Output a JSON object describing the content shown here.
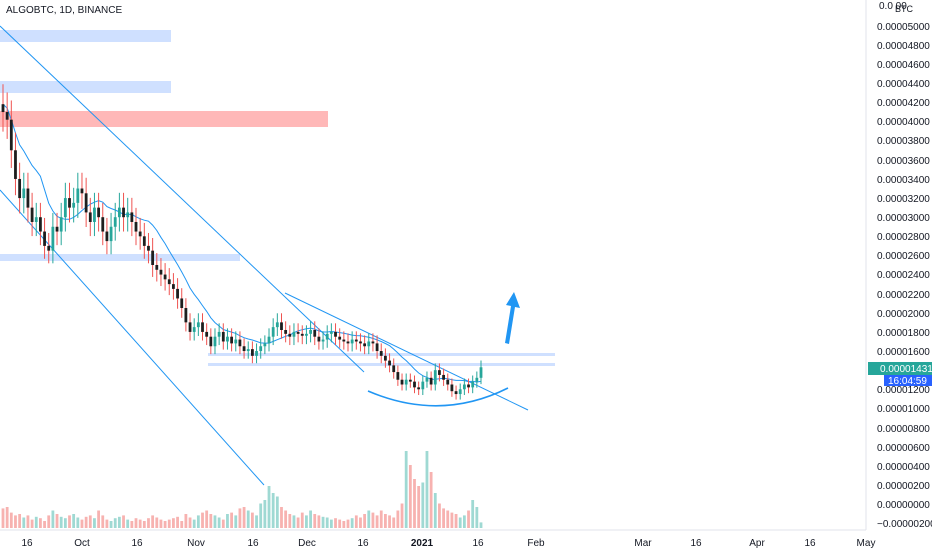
{
  "header": {
    "title": "ALGOBTC, 1D, BINANCE"
  },
  "price_axis": {
    "unit": "BTC",
    "top_label": "0.0  00",
    "ticks": [
      "0.00005000",
      "0.00004800",
      "0.00004600",
      "0.00004400",
      "0.00004200",
      "0.00004000",
      "0.00003800",
      "0.00003600",
      "0.00003400",
      "0.00003200",
      "0.00003000",
      "0.00002800",
      "0.00002600",
      "0.00002400",
      "0.00002200",
      "0.00002000",
      "0.00001800",
      "0.00001600",
      "0.00001200",
      "0.00001000",
      "0.00000800",
      "0.00000600",
      "0.00000400",
      "0.00000200",
      "0.00000000",
      "−0.00000200"
    ],
    "current_price": "0.00001431",
    "countdown": "16:04:59",
    "price_color": "#26a69a",
    "countdown_color": "#2962ff"
  },
  "time_axis": {
    "ticks": [
      {
        "label": "16",
        "bold": false
      },
      {
        "label": "Oct",
        "bold": false
      },
      {
        "label": "16",
        "bold": false
      },
      {
        "label": "Nov",
        "bold": false
      },
      {
        "label": "16",
        "bold": false
      },
      {
        "label": "Dec",
        "bold": false
      },
      {
        "label": "16",
        "bold": false
      },
      {
        "label": "2021",
        "bold": true
      },
      {
        "label": "16",
        "bold": false
      },
      {
        "label": "Feb",
        "bold": false
      },
      {
        "label": "Mar",
        "bold": false
      },
      {
        "label": "16",
        "bold": false
      },
      {
        "label": "Apr",
        "bold": false
      },
      {
        "label": "16",
        "bold": false
      },
      {
        "label": "May",
        "bold": false
      }
    ]
  },
  "chart_data": {
    "type": "candlestick",
    "title": "ALGOBTC, 1D, BINANCE",
    "x_range": [
      "2020-09-09",
      "2021-05-01"
    ],
    "y_range": [
      -2.5e-06,
      5.2e-05
    ],
    "up_color": "#26a69a",
    "down_color": "#ef5350",
    "candle_up_color": "#26a69a",
    "candle_down_color": "#1e1e1e",
    "wick_color": "#ef5350",
    "ma_color": "#2196f3",
    "closes": [
      4.1e-05,
      4.02e-05,
      3.7e-05,
      3.4e-05,
      3.2e-05,
      3.3e-05,
      3.1e-05,
      2.95e-05,
      3e-05,
      2.85e-05,
      2.7e-05,
      2.65e-05,
      2.9e-05,
      2.85e-05,
      3e-05,
      3.2e-05,
      3.1e-05,
      3.15e-05,
      3.3e-05,
      3.25e-05,
      3.05e-05,
      2.95e-05,
      3.1e-05,
      3e-05,
      2.85e-05,
      2.75e-05,
      2.9e-05,
      3e-05,
      3.1e-05,
      3e-05,
      3.05e-05,
      2.95e-05,
      2.85e-05,
      2.8e-05,
      2.7e-05,
      2.65e-05,
      2.5e-05,
      2.45e-05,
      2.4e-05,
      2.35e-05,
      2.3e-05,
      2.25e-05,
      2.15e-05,
      2.05e-05,
      1.9e-05,
      1.8e-05,
      1.85e-05,
      1.9e-05,
      1.8e-05,
      1.75e-05,
      1.65e-05,
      1.75e-05,
      1.8e-05,
      1.7e-05,
      1.75e-05,
      1.68e-05,
      1.72e-05,
      1.65e-05,
      1.6e-05,
      1.62e-05,
      1.55e-05,
      1.6e-05,
      1.65e-05,
      1.68e-05,
      1.75e-05,
      1.85e-05,
      1.9e-05,
      1.82e-05,
      1.78e-05,
      1.75e-05,
      1.8e-05,
      1.78e-05,
      1.76e-05,
      1.78e-05,
      1.82e-05,
      1.75e-05,
      1.7e-05,
      1.72e-05,
      1.78e-05,
      1.8e-05,
      1.75e-05,
      1.72e-05,
      1.7e-05,
      1.68e-05,
      1.72e-05,
      1.7e-05,
      1.68e-05,
      1.65e-05,
      1.7e-05,
      1.68e-05,
      1.6e-05,
      1.55e-05,
      1.5e-05,
      1.45e-05,
      1.38e-05,
      1.3e-05,
      1.25e-05,
      1.3e-05,
      1.28e-05,
      1.22e-05,
      1.2e-05,
      1.28e-05,
      1.32e-05,
      1.25e-05,
      1.4e-05,
      1.35e-05,
      1.3e-05,
      1.25e-05,
      1.18e-05,
      1.15e-05,
      1.2e-05,
      1.25e-05,
      1.22e-05,
      1.28e-05,
      1.32e-05,
      1.43e-05
    ],
    "volumes": [
      2.8e-06,
      3e-06,
      2.2e-06,
      1.8e-06,
      2e-06,
      1.5e-06,
      1.8e-06,
      1.2e-06,
      1.6e-06,
      1.4e-06,
      1e-06,
      1.8e-06,
      2.5e-06,
      2e-06,
      1.6e-06,
      1.4e-06,
      1.8e-06,
      2e-06,
      1.5e-06,
      1.2e-06,
      1.6e-06,
      1.8e-06,
      1.4e-06,
      2.5e-06,
      1.8e-06,
      1.2e-06,
      1e-06,
      1.4e-06,
      1.6e-06,
      1.8e-06,
      1.2e-06,
      1e-06,
      1.4e-06,
      1.2e-06,
      1e-06,
      1.4e-06,
      1.8e-06,
      1.5e-06,
      1.2e-06,
      1e-06,
      1.2e-06,
      1.4e-06,
      1.6e-06,
      1e-06,
      2e-06,
      1.5e-06,
      1.2e-06,
      1.8e-06,
      2.2e-06,
      2.5e-06,
      2e-06,
      1.8e-06,
      1.5e-06,
      1.2e-06,
      2e-06,
      2.2e-06,
      1.8e-06,
      2.8e-06,
      3e-06,
      2.5e-06,
      2.2e-06,
      1.8e-06,
      3.5e-06,
      4e-06,
      6e-06,
      5e-06,
      4.5e-06,
      3e-06,
      2.5e-06,
      2e-06,
      1.8e-06,
      1.5e-06,
      2.2e-06,
      1.8e-06,
      2.5e-06,
      2e-06,
      1.8e-06,
      1.6e-06,
      1.5e-06,
      1.2e-06,
      1.4e-06,
      1.2e-06,
      1e-06,
      1.2e-06,
      1.4e-06,
      1.8e-06,
      1.5e-06,
      2e-06,
      2.5e-06,
      2.2e-06,
      1.8e-06,
      2.5e-06,
      2e-06,
      1.8e-06,
      1.5e-06,
      2.5e-06,
      3.5e-06,
      1.1e-05,
      9e-06,
      7e-06,
      6e-06,
      6.5e-06,
      1.1e-05,
      8e-06,
      5e-06,
      3.5e-06,
      2.8e-06,
      2.5e-06,
      2.2e-06,
      2e-06,
      1.5e-06,
      1.8e-06,
      2.5e-06,
      4e-06,
      3e-06,
      8e-07
    ]
  }
}
